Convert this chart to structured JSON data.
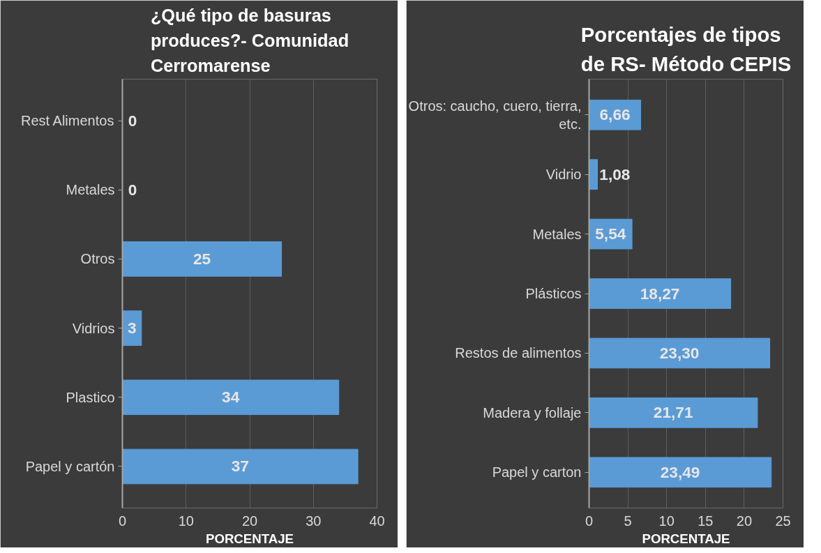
{
  "chart_data": [
    {
      "type": "bar",
      "orientation": "horizontal",
      "title": "¿Qué tipo de basuras produces?- Comunidad Cerromarense",
      "xlabel": "PORCENTAJE",
      "categories": [
        "Rest Alimentos",
        "Metales",
        "Otros",
        "Vidrios",
        "Plastico",
        "Papel y cartón"
      ],
      "values": [
        0,
        0,
        25,
        3,
        34,
        37
      ],
      "color": "#5b9bd5",
      "xlim": [
        0,
        40
      ],
      "xticks": [
        0,
        10,
        20,
        30,
        40
      ],
      "grid": "x",
      "data_labels": true
    },
    {
      "type": "bar",
      "orientation": "horizontal",
      "title": "Porcentajes de tipos de RS- Método CEPIS",
      "xlabel": "PORCENTAJE",
      "categories": [
        "Otros: caucho, cuero, tierra, etc.",
        "Vidrio",
        "Metales",
        "Plásticos",
        "Restos de alimentos",
        "Madera y follaje",
        "Papel y carton"
      ],
      "values": [
        6.66,
        1.08,
        5.54,
        18.27,
        23.3,
        21.71,
        23.49
      ],
      "color": "#5b9bd5",
      "value_labels": [
        "6,66",
        "1,08",
        "5,54",
        "18,27",
        "23,30",
        "21,71",
        "23,49"
      ],
      "xlim": [
        0,
        25
      ],
      "xticks": [
        0,
        5,
        10,
        15,
        20,
        25
      ],
      "grid": "x"
    }
  ]
}
